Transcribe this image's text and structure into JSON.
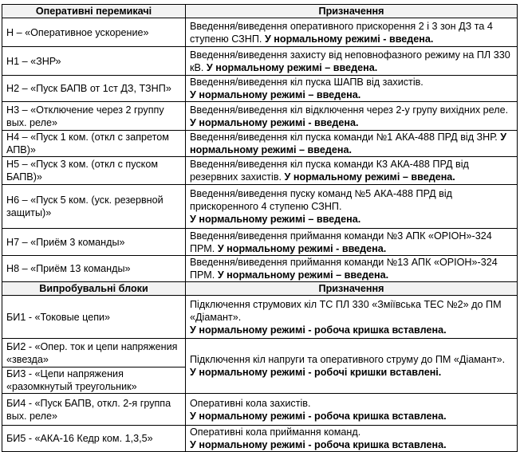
{
  "table": {
    "headers": [
      "Оперативні перемикачі",
      "Призначення"
    ],
    "rows": [
      {
        "name": "Н – «Оперативное ускорение»",
        "purpose": "Введення/виведення оперативного прискорення 2 і 3 зон ДЗ та 4 ступеню СЗНП.",
        "purpose_bold": "У нормальному режимі - введена."
      },
      {
        "name": "Н1 – «ЗНР»",
        "purpose": "Введення/виведення захисту від неповнофазного режиму на ПЛ 330 кВ.",
        "purpose_bold": "У нормальному режимі – введена."
      },
      {
        "name": "Н2 – «Пуск БАПВ от 1ст ДЗ, ТЗНП»",
        "purpose": "Введення/виведення кіл пуска ШАПВ від захистів.",
        "purpose_bold": "У нормальному режимі – введена."
      },
      {
        "name": "Н3 – «Отключение через 2 группу вых. реле»",
        "purpose": "Введення/виведення кіл відключення через 2-у групу вихідних реле.",
        "purpose_bold": "У нормальному режимі -  введена."
      },
      {
        "name": "Н4 – «Пуск 1 ком. (откл с запретом АПВ)»",
        "purpose": "Введення/виведення кіл пуска команди №1 АКА-488 ПРД від ЗНР.",
        "purpose_bold": "У нормальному режимі – введена."
      },
      {
        "name": "Н5 – «Пуск 3 ком. (откл с пуском БАПВ)»",
        "purpose": "Введення/виведення кіл пуска команди К3 АКА-488 ПРД від резервних захистів.",
        "purpose_bold": "У нормальному режимі – введена."
      },
      {
        "name": "Н6 – «Пуск 5 ком. (уск. резервной защиты)»",
        "purpose": "Введення/виведення пуску команд №5 АКА-488 ПРД від прискоренного 4 ступеню СЗНП.",
        "purpose_bold": "У нормальному режимі – введена."
      },
      {
        "name": "Н7 – «Приём 3 команды»",
        "purpose": "Введення/виведення приймання команди №3 АПК «ОРІОН»-324 ПРМ.",
        "purpose_bold": "У нормальному режимі - введена."
      },
      {
        "name": "Н8 – «Приём 13 команды»",
        "purpose": "Введення/виведення приймання команди №13 АПК «ОРІОН»-324 ПРМ.",
        "purpose_bold": "У нормальному режимі – введена."
      }
    ],
    "headers2": [
      "Випробувальні блоки",
      "Призначення"
    ],
    "rows2": [
      {
        "names": [
          "БИ1 - «Токовые цепи»"
        ],
        "purpose": "Підключення струмових кіл ТС ПЛ 330 «Зміївська ТЕС №2» до ПМ «Діамант».",
        "purpose_bold": "У нормальному режимі - робоча кришка вставлена."
      },
      {
        "names": [
          "БИ2 - «Опер. ток и цепи напряжения «звезда»",
          "БИ3 - «Цепи напряжения «разомкнутый треугольник»"
        ],
        "purpose": "Підключення кіл напруги та оперативного струму до ПМ «Діамант».",
        "purpose_bold": "У нормальному режимі - робочі кришки вставлені."
      },
      {
        "names": [
          "БИ4 - «Пуск БАПВ, откл. 2-я группа вых. реле»"
        ],
        "purpose": "Оперативні кола захистів.",
        "purpose_bold": "У нормальному режимі - робоча кришка вставлена."
      },
      {
        "names": [
          "БИ5 - «АКА-16 Кедр ком. 1,3,5»"
        ],
        "purpose": "Оперативні кола приймання команд.",
        "purpose_bold": "У нормальному режимі - робоча кришка вставлена."
      }
    ]
  }
}
